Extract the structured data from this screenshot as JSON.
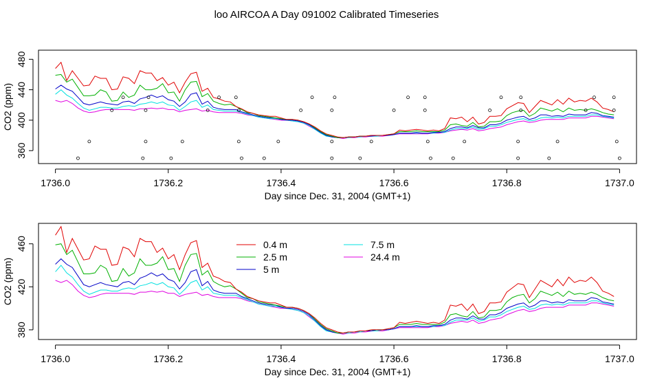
{
  "title": "loo AIRCOA A  Day 091002  Calibrated Timeseries",
  "colors": {
    "0.4 m": "#e00000",
    "2.5 m": "#00b000",
    "5 m": "#0000c8",
    "7.5 m": "#00e0e0",
    "24.4 m": "#e000e0",
    "points": "#000000"
  },
  "chart_data": [
    {
      "type": "line",
      "xlabel": "Day since Dec. 31, 2004 (GMT+1)",
      "ylabel": "CO2 (ppm)",
      "xlim": [
        1735.97,
        1737.03
      ],
      "ylim": [
        343,
        492
      ],
      "x_ticks": [
        1736.0,
        1736.2,
        1736.4,
        1736.6,
        1736.8,
        1737.0
      ],
      "x_tick_labels": [
        "1736.0",
        "1736.2",
        "1736.4",
        "1736.6",
        "1736.8",
        "1737.0"
      ],
      "y_ticks": [
        360,
        400,
        440,
        480
      ],
      "y_tick_labels": [
        "360",
        "400",
        "440",
        "480"
      ],
      "series_source": "shared",
      "points": [
        [
          1736.04,
          350
        ],
        [
          1736.06,
          372
        ],
        [
          1736.1,
          413
        ],
        [
          1736.12,
          430
        ],
        [
          1736.155,
          350
        ],
        [
          1736.16,
          372
        ],
        [
          1736.16,
          413
        ],
        [
          1736.165,
          430
        ],
        [
          1736.205,
          350
        ],
        [
          1736.225,
          372
        ],
        [
          1736.27,
          413
        ],
        [
          1736.29,
          430
        ],
        [
          1736.32,
          430
        ],
        [
          1736.325,
          413
        ],
        [
          1736.325,
          372
        ],
        [
          1736.33,
          350
        ],
        [
          1736.37,
          350
        ],
        [
          1736.395,
          372
        ],
        [
          1736.435,
          413
        ],
        [
          1736.455,
          430
        ],
        [
          1736.49,
          350
        ],
        [
          1736.49,
          372
        ],
        [
          1736.49,
          413
        ],
        [
          1736.495,
          430
        ],
        [
          1736.54,
          350
        ],
        [
          1736.56,
          372
        ],
        [
          1736.6,
          413
        ],
        [
          1736.625,
          430
        ],
        [
          1736.655,
          430
        ],
        [
          1736.655,
          413
        ],
        [
          1736.66,
          372
        ],
        [
          1736.665,
          350
        ],
        [
          1736.705,
          350
        ],
        [
          1736.725,
          372
        ],
        [
          1736.77,
          413
        ],
        [
          1736.79,
          430
        ],
        [
          1736.82,
          350
        ],
        [
          1736.82,
          372
        ],
        [
          1736.825,
          413
        ],
        [
          1736.825,
          430
        ],
        [
          1736.875,
          350
        ],
        [
          1736.89,
          372
        ],
        [
          1736.94,
          413
        ],
        [
          1736.955,
          430
        ],
        [
          1736.99,
          430
        ],
        [
          1736.99,
          413
        ],
        [
          1736.995,
          372
        ],
        [
          1737.0,
          350
        ]
      ]
    },
    {
      "type": "line",
      "xlabel": "Day since Dec. 31, 2004 (GMT+1)",
      "ylabel": "CO2 (ppm)",
      "xlim": [
        1735.97,
        1737.03
      ],
      "ylim": [
        371,
        479
      ],
      "x_ticks": [
        1736.0,
        1736.2,
        1736.4,
        1736.6,
        1736.8,
        1737.0
      ],
      "x_tick_labels": [
        "1736.0",
        "1736.2",
        "1736.4",
        "1736.6",
        "1736.8",
        "1737.0"
      ],
      "y_ticks": [
        380,
        420,
        460
      ],
      "y_tick_labels": [
        "380",
        "420",
        "460"
      ],
      "legend": {
        "position": "top-center",
        "columns": 2
      },
      "series_source": "shared"
    }
  ],
  "series_x": [
    1736.0,
    1736.01,
    1736.02,
    1736.03,
    1736.04,
    1736.05,
    1736.06,
    1736.07,
    1736.08,
    1736.09,
    1736.1,
    1736.11,
    1736.12,
    1736.13,
    1736.14,
    1736.15,
    1736.16,
    1736.17,
    1736.18,
    1736.19,
    1736.2,
    1736.21,
    1736.22,
    1736.23,
    1736.24,
    1736.25,
    1736.26,
    1736.27,
    1736.28,
    1736.29,
    1736.3,
    1736.31,
    1736.32,
    1736.33,
    1736.34,
    1736.35,
    1736.36,
    1736.37,
    1736.38,
    1736.39,
    1736.4,
    1736.41,
    1736.42,
    1736.43,
    1736.44,
    1736.45,
    1736.46,
    1736.47,
    1736.48,
    1736.49,
    1736.5,
    1736.51,
    1736.52,
    1736.53,
    1736.54,
    1736.55,
    1736.56,
    1736.57,
    1736.58,
    1736.59,
    1736.6,
    1736.61,
    1736.62,
    1736.63,
    1736.64,
    1736.65,
    1736.66,
    1736.67,
    1736.68,
    1736.69,
    1736.7,
    1736.71,
    1736.72,
    1736.73,
    1736.74,
    1736.75,
    1736.76,
    1736.77,
    1736.78,
    1736.79,
    1736.8,
    1736.81,
    1736.82,
    1736.83,
    1736.84,
    1736.85,
    1736.86,
    1736.87,
    1736.88,
    1736.89,
    1736.9,
    1736.91,
    1736.92,
    1736.93,
    1736.94,
    1736.95,
    1736.96,
    1736.97,
    1736.98,
    1736.99
  ],
  "series": [
    {
      "name": "0.4 m",
      "values": [
        468,
        476,
        452,
        465,
        455,
        445,
        446,
        458,
        455,
        455,
        440,
        441,
        457,
        455,
        448,
        465,
        462,
        462,
        452,
        456,
        446,
        450,
        436,
        450,
        461,
        463,
        438,
        442,
        430,
        428,
        425,
        424,
        418,
        415,
        411,
        409,
        407,
        406,
        405,
        405,
        403,
        401,
        401,
        400,
        398,
        395,
        391,
        386,
        382,
        380,
        378,
        377,
        378,
        378,
        379,
        379,
        380,
        380,
        380,
        381,
        382,
        387,
        386,
        387,
        388,
        387,
        386,
        387,
        386,
        389,
        403,
        402,
        404,
        398,
        404,
        395,
        397,
        405,
        405,
        406,
        415,
        419,
        423,
        422,
        410,
        418,
        426,
        423,
        420,
        427,
        421,
        429,
        424,
        426,
        425,
        429,
        424,
        416,
        414,
        411
      ]
    },
    {
      "name": "2.5 m",
      "values": [
        459,
        460,
        450,
        454,
        443,
        432,
        432,
        433,
        440,
        437,
        425,
        426,
        437,
        430,
        433,
        446,
        440,
        440,
        442,
        448,
        436,
        437,
        425,
        440,
        450,
        451,
        431,
        435,
        425,
        422,
        420,
        421,
        418,
        414,
        410,
        409,
        406,
        405,
        404,
        403,
        402,
        401,
        401,
        400,
        398,
        395,
        390,
        385,
        381,
        379,
        377,
        377,
        378,
        378,
        379,
        379,
        380,
        380,
        380,
        381,
        382,
        385,
        385,
        385,
        386,
        385,
        385,
        385,
        385,
        387,
        394,
        395,
        393,
        392,
        397,
        391,
        392,
        398,
        398,
        399,
        406,
        410,
        412,
        413,
        405,
        409,
        416,
        414,
        412,
        415,
        411,
        416,
        413,
        414,
        413,
        415,
        413,
        410,
        408,
        407
      ]
    },
    {
      "name": "5 m",
      "values": [
        441,
        446,
        441,
        438,
        430,
        422,
        420,
        422,
        424,
        422,
        421,
        420,
        424,
        425,
        422,
        428,
        430,
        433,
        430,
        432,
        427,
        425,
        418,
        424,
        434,
        436,
        421,
        425,
        417,
        415,
        414,
        414,
        414,
        411,
        409,
        407,
        405,
        404,
        403,
        403,
        401,
        400,
        400,
        399,
        397,
        394,
        389,
        384,
        380,
        378,
        377,
        377,
        378,
        378,
        379,
        379,
        379,
        380,
        380,
        380,
        381,
        383,
        383,
        383,
        384,
        383,
        383,
        384,
        384,
        385,
        389,
        391,
        391,
        390,
        393,
        390,
        390,
        394,
        394,
        396,
        400,
        402,
        404,
        405,
        401,
        403,
        407,
        407,
        405,
        406,
        405,
        408,
        407,
        407,
        407,
        410,
        409,
        406,
        405,
        404
      ]
    },
    {
      "name": "7.5 m",
      "values": [
        434,
        440,
        433,
        429,
        422,
        416,
        413,
        415,
        417,
        417,
        416,
        416,
        418,
        419,
        418,
        421,
        422,
        424,
        422,
        424,
        420,
        419,
        413,
        418,
        424,
        426,
        417,
        420,
        414,
        413,
        412,
        412,
        412,
        410,
        408,
        406,
        404,
        403,
        402,
        402,
        401,
        400,
        399,
        398,
        396,
        393,
        388,
        383,
        379,
        378,
        377,
        377,
        377,
        378,
        378,
        379,
        379,
        379,
        380,
        380,
        381,
        383,
        383,
        383,
        383,
        383,
        383,
        383,
        384,
        384,
        387,
        389,
        389,
        389,
        391,
        388,
        389,
        392,
        392,
        394,
        397,
        399,
        401,
        402,
        399,
        400,
        403,
        404,
        403,
        404,
        403,
        405,
        405,
        405,
        405,
        407,
        407,
        405,
        404,
        403
      ]
    },
    {
      "name": "24.4 m",
      "values": [
        426,
        424,
        426,
        422,
        416,
        412,
        410,
        411,
        413,
        414,
        414,
        414,
        414,
        414,
        413,
        415,
        415,
        416,
        415,
        416,
        414,
        414,
        411,
        413,
        414,
        415,
        412,
        413,
        411,
        410,
        410,
        410,
        410,
        409,
        407,
        406,
        404,
        403,
        402,
        401,
        400,
        400,
        399,
        398,
        396,
        392,
        388,
        383,
        380,
        378,
        377,
        376,
        377,
        377,
        378,
        378,
        379,
        379,
        379,
        380,
        381,
        382,
        382,
        382,
        382,
        382,
        382,
        383,
        383,
        384,
        386,
        387,
        388,
        387,
        389,
        386,
        387,
        389,
        390,
        391,
        394,
        396,
        398,
        399,
        397,
        398,
        400,
        401,
        401,
        401,
        401,
        403,
        403,
        403,
        403,
        405,
        405,
        404,
        403,
        402
      ]
    }
  ]
}
